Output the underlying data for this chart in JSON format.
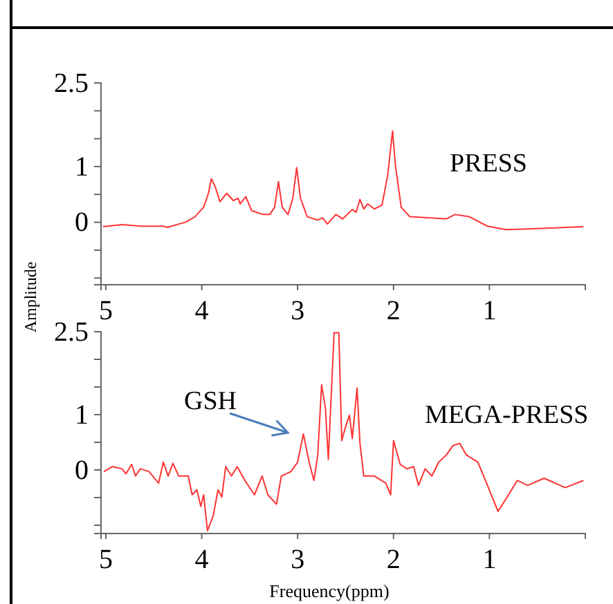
{
  "chart_data": [
    {
      "type": "line",
      "ylabel": "Amplitude",
      "annotations": [
        "PRESS"
      ],
      "xlim": [
        5.05,
        0
      ],
      "xticks": [
        5,
        4,
        3,
        2,
        1
      ],
      "ylim": [
        -1.12,
        2.5
      ],
      "yticks": [
        2.5,
        {
          "value": 2,
          "label": null
        },
        {
          "value": 1.5,
          "label": null
        },
        1,
        {
          "value": 0.5,
          "label": null
        },
        0,
        {
          "value": -0.5,
          "label": null
        },
        {
          "value": -1,
          "label": null
        }
      ],
      "series": [
        {
          "color": "#ff3333",
          "x": [
            5.03,
            4.83,
            4.64,
            4.4,
            4.36,
            4.17,
            4.07,
            3.98,
            3.93,
            3.9,
            3.86,
            3.81,
            3.74,
            3.67,
            3.62,
            3.6,
            3.54,
            3.48,
            3.36,
            3.29,
            3.24,
            3.2,
            3.16,
            3.1,
            3.05,
            3.01,
            2.97,
            2.9,
            2.79,
            2.74,
            2.69,
            2.6,
            2.53,
            2.43,
            2.39,
            2.35,
            2.31,
            2.27,
            2.2,
            2.12,
            2.06,
            2.01,
            1.98,
            1.92,
            1.83,
            1.62,
            1.45,
            1.36,
            1.21,
            1.02,
            0.83,
            0.45,
            0.02
          ],
          "values": [
            -0.08,
            -0.04,
            -0.07,
            -0.07,
            -0.09,
            0,
            0.1,
            0.27,
            0.52,
            0.78,
            0.64,
            0.37,
            0.52,
            0.39,
            0.43,
            0.33,
            0.46,
            0.21,
            0.14,
            0.14,
            0.27,
            0.73,
            0.27,
            0.14,
            0.43,
            0.98,
            0.43,
            0.1,
            0.04,
            0.08,
            -0.03,
            0.14,
            0.06,
            0.23,
            0.18,
            0.41,
            0.24,
            0.33,
            0.24,
            0.31,
            0.85,
            1.64,
            1.02,
            0.27,
            0.1,
            0.08,
            0.06,
            0.14,
            0.1,
            -0.07,
            -0.13,
            -0.11,
            -0.08
          ]
        }
      ]
    },
    {
      "type": "line",
      "xlabel": "Frequency(ppm)",
      "annotations": [
        "GSH",
        "MEGA-PRESS"
      ],
      "xlim": [
        5.05,
        0
      ],
      "xticks": [
        5,
        4,
        3,
        2,
        1
      ],
      "ylim": [
        -1.15,
        2.5
      ],
      "yticks": [
        2.5,
        {
          "value": 2,
          "label": null
        },
        {
          "value": 1.5,
          "label": null
        },
        1,
        {
          "value": 0.5,
          "label": null
        },
        0,
        {
          "value": -0.5,
          "label": null
        },
        {
          "value": -1,
          "label": null
        }
      ],
      "series": [
        {
          "color": "#ff3333",
          "x": [
            5.02,
            4.93,
            4.83,
            4.79,
            4.73,
            4.69,
            4.64,
            4.55,
            4.45,
            4.4,
            4.35,
            4.3,
            4.24,
            4.14,
            4.1,
            4.05,
            4.01,
            3.98,
            3.94,
            3.88,
            3.83,
            3.79,
            3.75,
            3.69,
            3.63,
            3.55,
            3.45,
            3.37,
            3.31,
            3.22,
            3.17,
            3.07,
            3.0,
            2.94,
            2.88,
            2.83,
            2.79,
            2.75,
            2.71,
            2.68,
            2.64,
            2.62,
            2.57,
            2.54,
            2.5,
            2.46,
            2.43,
            2.38,
            2.35,
            2.31,
            2.2,
            2.08,
            2.03,
            2.0,
            1.93,
            1.86,
            1.79,
            1.74,
            1.67,
            1.6,
            1.53,
            1.45,
            1.38,
            1.31,
            1.24,
            1.12,
            1.02,
            0.91,
            0.83,
            0.71,
            0.6,
            0.43,
            0.21,
            0.02
          ],
          "values": [
            -0.03,
            0.06,
            0.02,
            -0.07,
            0.1,
            -0.11,
            0.02,
            -0.03,
            -0.24,
            0.14,
            -0.11,
            0.12,
            -0.11,
            -0.11,
            -0.45,
            -0.36,
            -0.66,
            -0.45,
            -1.1,
            -0.83,
            -0.36,
            -0.49,
            0.06,
            -0.11,
            0.06,
            -0.19,
            -0.45,
            -0.11,
            -0.45,
            -0.62,
            -0.11,
            -0.03,
            0.14,
            0.65,
            0.14,
            -0.19,
            0.27,
            1.54,
            1.12,
            0.19,
            1.71,
            2.48,
            2.48,
            0.53,
            0.78,
            0.99,
            0.57,
            1.48,
            0.48,
            -0.11,
            -0.11,
            -0.24,
            -0.45,
            0.53,
            0.1,
            0.02,
            0.06,
            -0.28,
            0.02,
            -0.11,
            0.14,
            0.27,
            0.44,
            0.48,
            0.27,
            0.14,
            -0.28,
            -0.75,
            -0.53,
            -0.19,
            -0.28,
            -0.15,
            -0.32,
            -0.19
          ]
        }
      ]
    }
  ]
}
